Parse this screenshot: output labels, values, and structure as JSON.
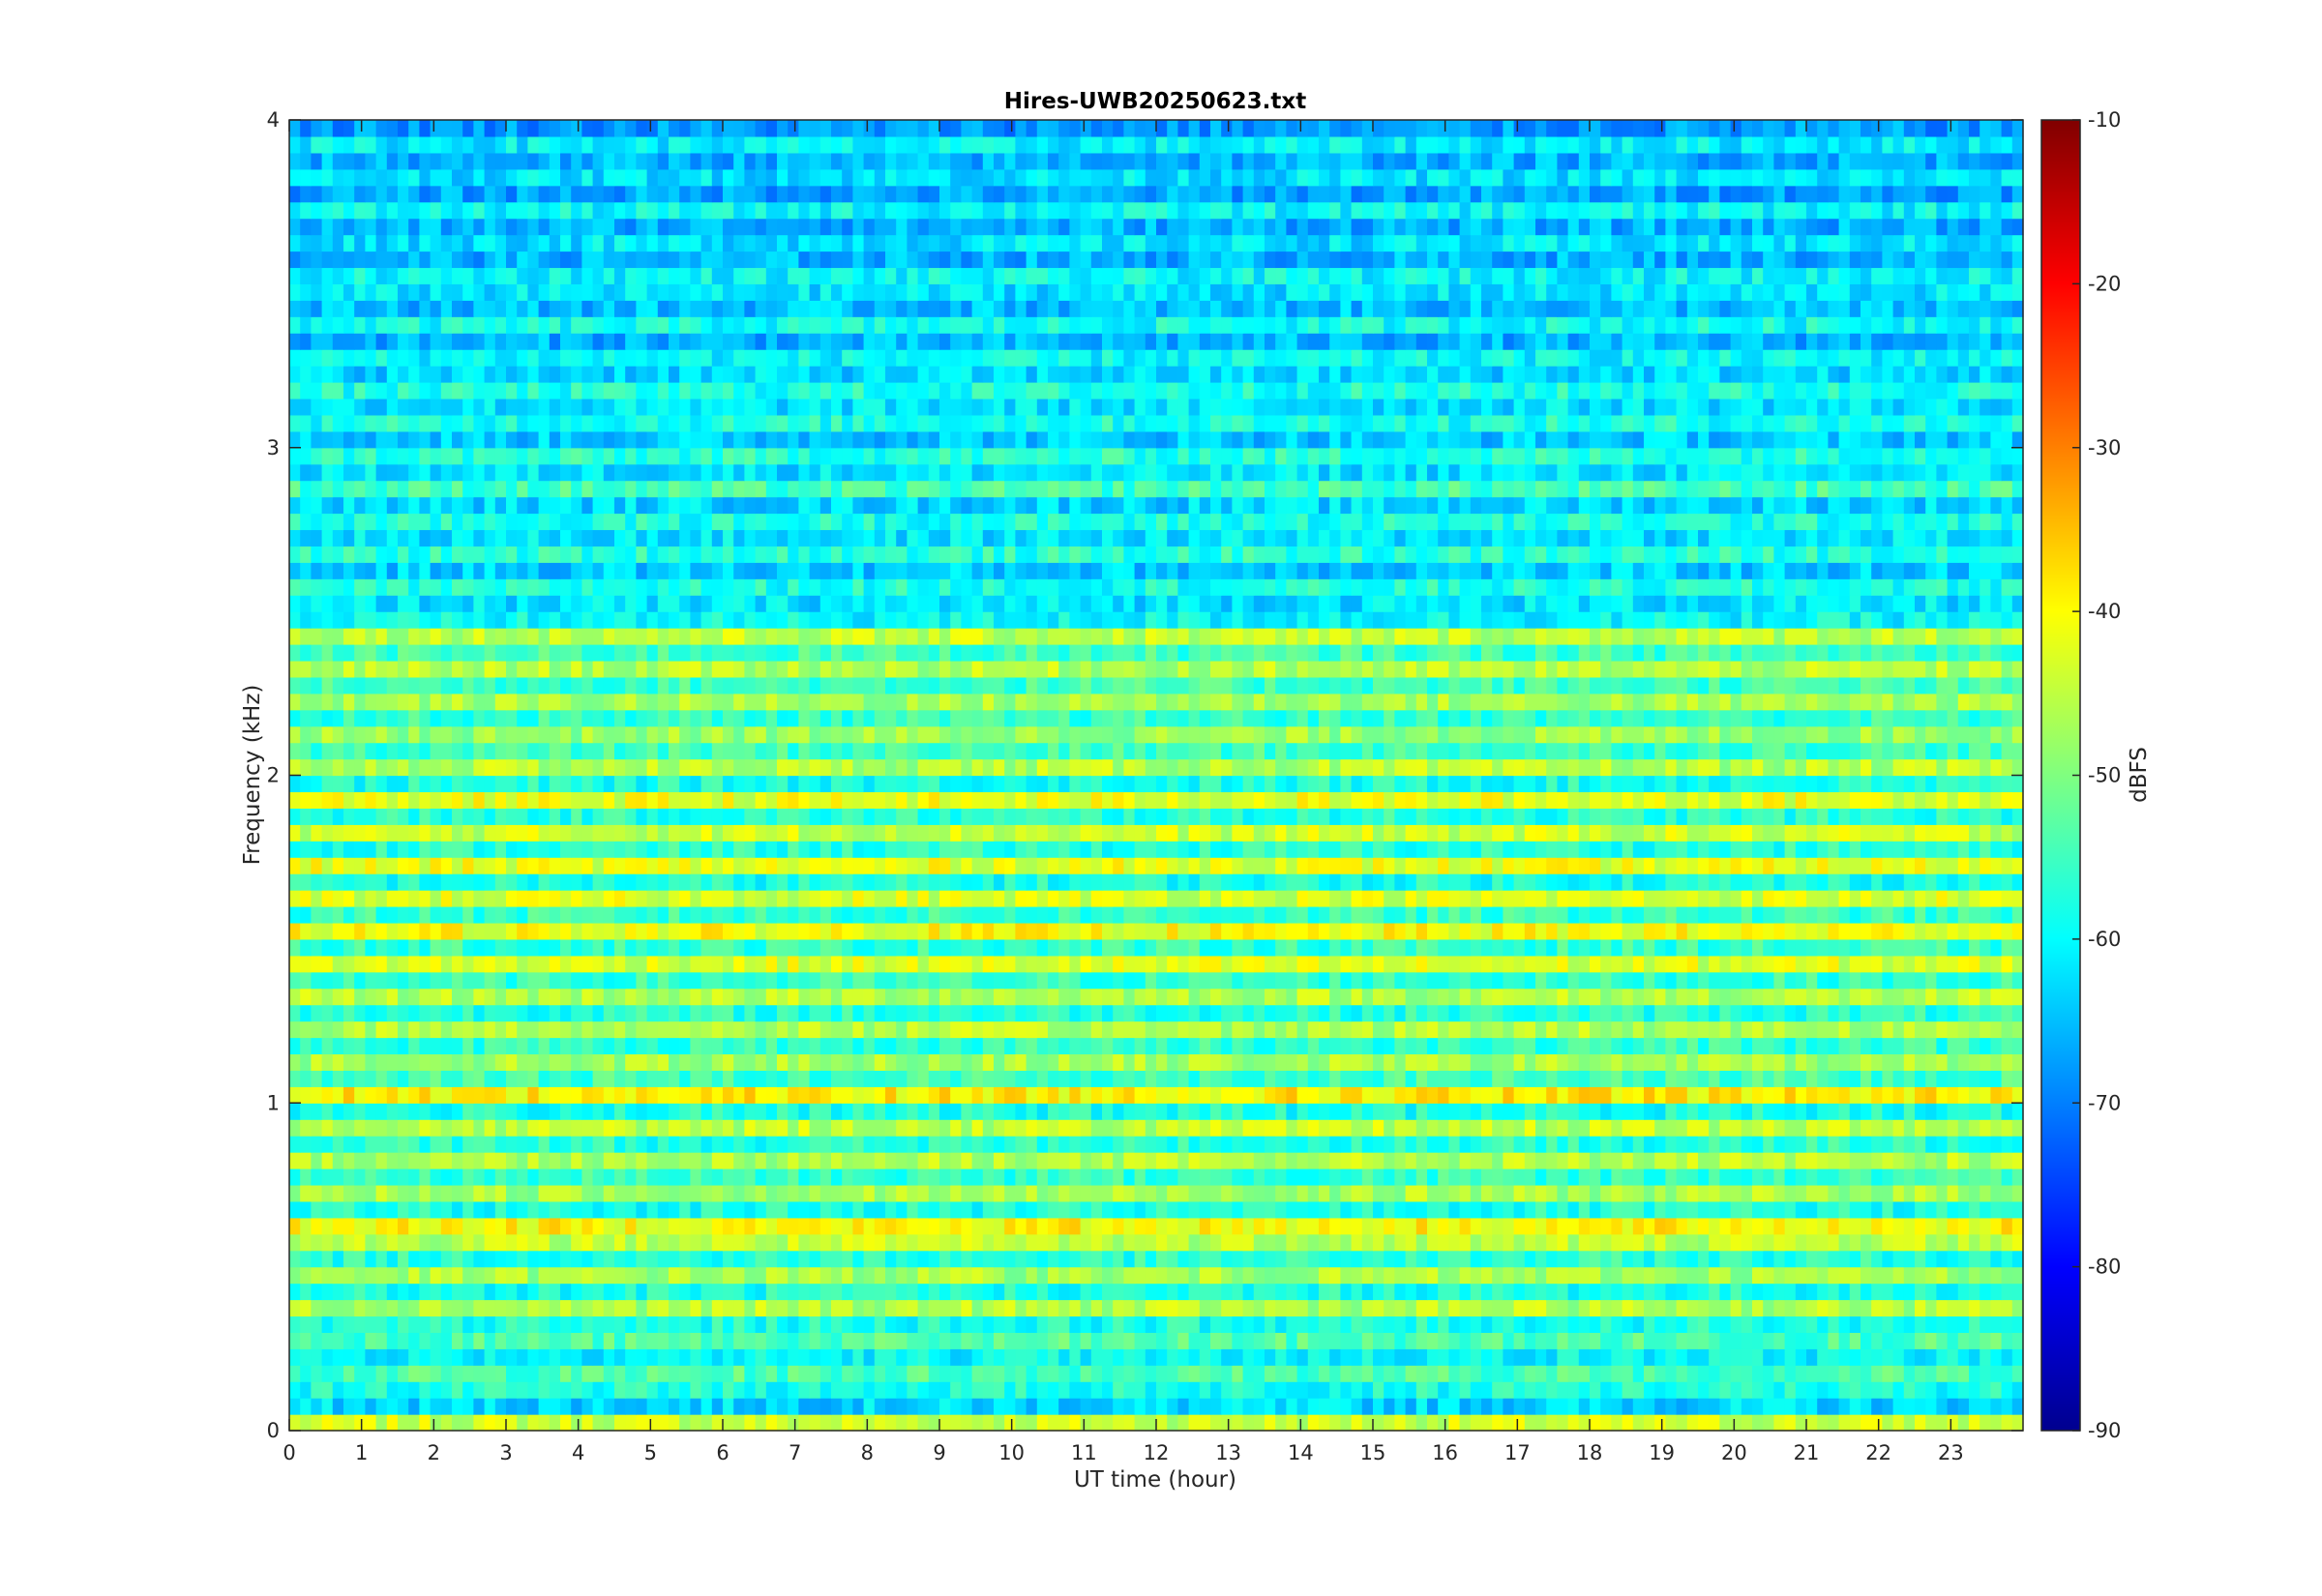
{
  "chart_data": {
    "type": "heatmap",
    "title": "Hires-UWB20250623.txt",
    "xlabel": "UT time (hour)",
    "ylabel": "Frequency (kHz)",
    "colorbar_label": "dBFS",
    "xlim": [
      0,
      24
    ],
    "ylim": [
      0,
      4
    ],
    "clim": [
      -90,
      -10
    ],
    "colormap": "jet",
    "x_ticks": [
      "0",
      "1",
      "2",
      "3",
      "4",
      "5",
      "6",
      "7",
      "8",
      "9",
      "10",
      "11",
      "12",
      "13",
      "14",
      "15",
      "16",
      "17",
      "18",
      "19",
      "20",
      "21",
      "22",
      "23"
    ],
    "y_ticks": [
      "0",
      "1",
      "2",
      "3",
      "4"
    ],
    "colorbar_ticks": [
      "-10",
      "-20",
      "-30",
      "-40",
      "-50",
      "-60",
      "-70",
      "-80",
      "-90"
    ],
    "freq_bins_khz": [
      0.05,
      0.1,
      0.15,
      0.2,
      0.25,
      0.3,
      0.35,
      0.4,
      0.45,
      0.5,
      0.55,
      0.6,
      0.65,
      0.7,
      0.75,
      0.8,
      0.85,
      0.9,
      0.95,
      1.0,
      1.05,
      1.1,
      1.15,
      1.2,
      1.25,
      1.3,
      1.35,
      1.4,
      1.45,
      1.5,
      1.55,
      1.6,
      1.65,
      1.7,
      1.75,
      1.8,
      1.85,
      1.9,
      1.95,
      2.0,
      2.05,
      2.1,
      2.15,
      2.2,
      2.25,
      2.3,
      2.35,
      2.4,
      2.45,
      2.5,
      2.55,
      2.6,
      2.65,
      2.7,
      2.75,
      2.8,
      2.85,
      2.9,
      2.95,
      3.0,
      3.05,
      3.1,
      3.15,
      3.2,
      3.25,
      3.3,
      3.35,
      3.4,
      3.45,
      3.5,
      3.55,
      3.6,
      3.65,
      3.7,
      3.75,
      3.8,
      3.85,
      3.9,
      3.95,
      4.0
    ],
    "mean_level_dbfs_by_freq": [
      -44,
      -63,
      -58,
      -54,
      -60,
      -54,
      -58,
      -46,
      -58,
      -47,
      -57,
      -45,
      -40,
      -58,
      -47,
      -56,
      -46,
      -57,
      -45,
      -58,
      -39,
      -55,
      -47,
      -56,
      -46,
      -57,
      -46,
      -56,
      -43,
      -56,
      -41,
      -56,
      -43,
      -58,
      -42,
      -57,
      -44,
      -57,
      -42,
      -58,
      -46,
      -55,
      -48,
      -56,
      -47,
      -55,
      -46,
      -55,
      -45,
      -60,
      -62,
      -58,
      -64,
      -57,
      -62,
      -58,
      -63,
      -55,
      -62,
      -57,
      -64,
      -58,
      -62,
      -58,
      -63,
      -60,
      -66,
      -59,
      -65,
      -62,
      -60,
      -66,
      -62,
      -66,
      -60,
      -67,
      -62,
      -66,
      -61,
      -68
    ]
  }
}
